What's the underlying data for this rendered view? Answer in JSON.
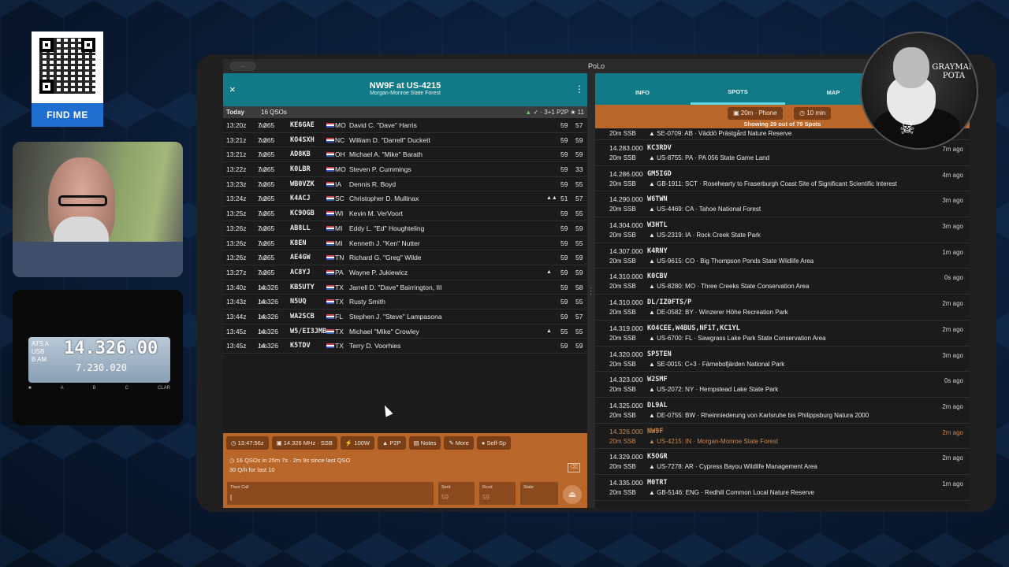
{
  "qr": {
    "button_label": "FIND ME"
  },
  "radio": {
    "main_freq": "14.326.00",
    "sub_freq": "7.230.020",
    "mode_lines": [
      "ATS A",
      "USB",
      "B  AM"
    ]
  },
  "avatar": {
    "text": "GRAYMAN POTA"
  },
  "window": {
    "title": "PoLo",
    "pill": "..."
  },
  "operation": {
    "close_icon": "×",
    "title": "NW9F at US-4215",
    "subtitle": "Morgan-Monroe State Forest",
    "menu_icon": "⋮"
  },
  "today": {
    "label": "Today",
    "count": "16 QSOs",
    "summary": "✓ · 3+1 P2P  ★ 11"
  },
  "qsos": [
    {
      "time": "13:20z",
      "freq": "7.265",
      "freq_sub": ".000",
      "call": "KE6GAE",
      "state": "MO",
      "name": "David C. \"Dave\" Harris",
      "extra": "",
      "sent": "59",
      "rcvd": "57"
    },
    {
      "time": "13:21z",
      "freq": "7.265",
      "freq_sub": ".000",
      "call": "KO4SXH",
      "state": "NC",
      "name": "William D. \"Darrell\" Duckett",
      "extra": "",
      "sent": "59",
      "rcvd": "59"
    },
    {
      "time": "13:21z",
      "freq": "7.265",
      "freq_sub": ".000",
      "call": "AD8KB",
      "state": "OH",
      "name": "Michael A. \"Mike\" Barath",
      "extra": "",
      "sent": "59",
      "rcvd": "59"
    },
    {
      "time": "13:22z",
      "freq": "7.265",
      "freq_sub": ".000",
      "call": "K0LBR",
      "state": "MO",
      "name": "Steven P. Cummings",
      "extra": "",
      "sent": "59",
      "rcvd": "33"
    },
    {
      "time": "13:23z",
      "freq": "7.265",
      "freq_sub": ".000",
      "call": "WB0VZK",
      "state": "IA",
      "name": "Dennis R. Boyd",
      "extra": "",
      "sent": "59",
      "rcvd": "55"
    },
    {
      "time": "13:24z",
      "freq": "7.265",
      "freq_sub": ".000",
      "call": "K4ACJ",
      "state": "SC",
      "name": "Christopher D. Mullinax",
      "extra": "▲▲",
      "sent": "51",
      "rcvd": "57"
    },
    {
      "time": "13:25z",
      "freq": "7.265",
      "freq_sub": ".000",
      "call": "KC9OGB",
      "state": "WI",
      "name": "Kevin M. VerVoort",
      "extra": "",
      "sent": "59",
      "rcvd": "55"
    },
    {
      "time": "13:26z",
      "freq": "7.265",
      "freq_sub": ".000",
      "call": "AB8LL",
      "state": "MI",
      "name": "Eddy L. \"Ed\" Houghteling",
      "extra": "",
      "sent": "59",
      "rcvd": "59"
    },
    {
      "time": "13:26z",
      "freq": "7.265",
      "freq_sub": ".000",
      "call": "K8EN",
      "state": "MI",
      "name": "Kenneth J. \"Ken\" Nutter",
      "extra": "",
      "sent": "59",
      "rcvd": "55"
    },
    {
      "time": "13:26z",
      "freq": "7.265",
      "freq_sub": ".000",
      "call": "AE4GW",
      "state": "TN",
      "name": "Richard G. \"Greg\" Wilde",
      "extra": "",
      "sent": "59",
      "rcvd": "59"
    },
    {
      "time": "13:27z",
      "freq": "7.265",
      "freq_sub": ".000",
      "call": "AC8YJ",
      "state": "PA",
      "name": "Wayne P. Jukiewicz",
      "extra": "▲",
      "sent": "59",
      "rcvd": "59"
    },
    {
      "time": "13:40z",
      "freq": "14.326",
      "freq_sub": ".000",
      "call": "KB5UTY",
      "state": "TX",
      "name": "Jarrell D. \"Dave\" Bairrington, III",
      "extra": "",
      "sent": "59",
      "rcvd": "58"
    },
    {
      "time": "13:43z",
      "freq": "14.326",
      "freq_sub": ".000",
      "call": "N5UQ",
      "state": "TX",
      "name": "Rusty Smith",
      "extra": "",
      "sent": "59",
      "rcvd": "55"
    },
    {
      "time": "13:44z",
      "freq": "14.326",
      "freq_sub": ".000",
      "call": "WA2SCB",
      "state": "FL",
      "name": "Stephen J. \"Steve\" Lampasona",
      "extra": "",
      "sent": "59",
      "rcvd": "57"
    },
    {
      "time": "13:45z",
      "freq": "14.326",
      "freq_sub": ".000",
      "call": "W5/EI3JMB",
      "state": "TX",
      "name": "Michael \"Mike\" Crowley",
      "extra": "▲",
      "sent": "55",
      "rcvd": "55"
    },
    {
      "time": "13:45z",
      "freq": "14.326",
      "freq_sub": ".000",
      "call": "K5TDV",
      "state": "TX",
      "name": "Terry D. Voorhies",
      "extra": "",
      "sent": "59",
      "rcvd": "59"
    }
  ],
  "opbar": {
    "chips": [
      "13:47:56z",
      "14.326 MHz · SSB",
      "100W",
      "P2P",
      "Notes",
      "More",
      "Self-Sp"
    ],
    "stats_line1": "16 QSOs in 25m 7s · 2m 9s since last QSO",
    "stats_line2": "30 Q/h for last 10",
    "clear_icon": "⌫",
    "their_call_label": "Their Call",
    "sent_label": "Sent",
    "sent_value": "59",
    "rcvd_label": "Rcvd",
    "rcvd_value": "59",
    "state_label": "State",
    "send_icon": "⏏"
  },
  "tabs": [
    "INFO",
    "SPOTS",
    "MAP"
  ],
  "spot_filters": {
    "band_mode": "20m · Phone",
    "age": "10 min",
    "showing": "Showing 29 out of 79 Spots"
  },
  "spots": [
    {
      "freq": "",
      "call": "",
      "band": "20m",
      "mode": "SSB",
      "ref": "▲ SE-0709: AB · Väddö Prästgård Nature Reserve",
      "ago": "",
      "self": false
    },
    {
      "freq": "14.283.000",
      "call": "KC3RDV",
      "band": "20m",
      "mode": "SSB",
      "ref": "▲ US-8755: PA · PA 056 State Game Land",
      "ago": "7m ago",
      "self": false
    },
    {
      "freq": "14.286.000",
      "call": "GM5IGD",
      "band": "20m",
      "mode": "SSB",
      "ref": "▲ GB-1911: SCT · Rosehearty to Fraserburgh Coast Site of Significant Scientific Interest",
      "ago": "4m ago",
      "self": false
    },
    {
      "freq": "14.290.000",
      "call": "W6TWN",
      "band": "20m",
      "mode": "SSB",
      "ref": "▲ US-4469: CA · Tahoe National Forest",
      "ago": "3m ago",
      "self": false
    },
    {
      "freq": "14.304.000",
      "call": "W3HTL",
      "band": "20m",
      "mode": "SSB",
      "ref": "▲ US-2319: IA · Rock Creek State Park",
      "ago": "3m ago",
      "self": false
    },
    {
      "freq": "14.307.000",
      "call": "K4RNY",
      "band": "20m",
      "mode": "SSB",
      "ref": "▲ US-9615: CO · Big Thompson Ponds State Wildlife Area",
      "ago": "1m ago",
      "self": false
    },
    {
      "freq": "14.310.000",
      "call": "K0CBV",
      "band": "20m",
      "mode": "SSB",
      "ref": "▲ US-8280: MO · Three Creeks State Conservation Area",
      "ago": "0s ago",
      "self": false
    },
    {
      "freq": "14.310.000",
      "call": "DL/IZ0FTS/P",
      "band": "20m",
      "mode": "SSB",
      "ref": "▲ DE-0582: BY · Winzerer Höhe Recreation Park",
      "ago": "2m ago",
      "self": false
    },
    {
      "freq": "14.319.000",
      "call": "KO4CEE,W4BUS,NF1T,KC1YL",
      "band": "20m",
      "mode": "SSB",
      "ref": "▲ US-6700: FL · Sawgrass Lake Park State Conservation Area",
      "ago": "2m ago",
      "self": false
    },
    {
      "freq": "14.320.000",
      "call": "SP5TEN",
      "band": "20m",
      "mode": "SSB",
      "ref": "▲ SE-0015: C+3 · Färnebofjärden National Park",
      "ago": "3m ago",
      "self": false
    },
    {
      "freq": "14.323.000",
      "call": "W2SMF",
      "band": "20m",
      "mode": "SSB",
      "ref": "▲ US-2072: NY · Hempstead Lake State Park",
      "ago": "0s ago",
      "self": false
    },
    {
      "freq": "14.325.000",
      "call": "DL9AL",
      "band": "20m",
      "mode": "SSB",
      "ref": "▲ DE-0755: BW · Rheinniederung von Karlsruhe bis Philippsburg Natura 2000",
      "ago": "2m ago",
      "self": false
    },
    {
      "freq": "14.326.000",
      "call": "NW9F",
      "band": "20m",
      "mode": "SSB",
      "ref": "▲ US-4215: IN · Morgan-Monroe State Forest",
      "ago": "2m ago",
      "self": true
    },
    {
      "freq": "14.329.000",
      "call": "K5OGR",
      "band": "20m",
      "mode": "SSB",
      "ref": "▲ US-7278: AR · Cypress Bayou Wildlife Management Area",
      "ago": "2m ago",
      "self": false
    },
    {
      "freq": "14.335.000",
      "call": "M0TRT",
      "band": "20m",
      "mode": "SSB",
      "ref": "▲ GB-5146: ENG · Redhill Common Local Nature Reserve",
      "ago": "1m ago",
      "self": false
    }
  ]
}
